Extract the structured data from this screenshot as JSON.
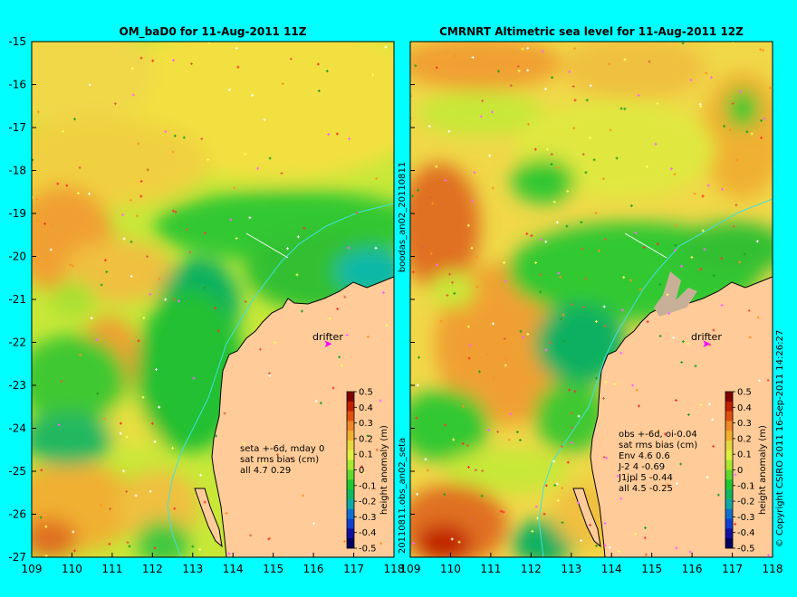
{
  "left_panel": {
    "title": "OM_baD0 for 11-Aug-2011 11Z",
    "stats": [
      "seta +-6d, mday 0",
      "sat rms bias (cm)",
      "all 4.7 0.29"
    ],
    "drifter_label": "drifter",
    "colorbar_label": "height anomaly (m)"
  },
  "right_panel": {
    "title": "CMRNRT Altimetric sea level  for 11-Aug-2011 12Z",
    "stats": [
      "obs +-6d, oi-0.04",
      "sat rms bias (cm)",
      "Env   4.6 0.6",
      "J-2    4 -0.69",
      "J1jpl 5 -0.44",
      "all 4.5 -0.25"
    ],
    "drifter_label": "drifter",
    "colorbar_label": "height anomaly (m)"
  },
  "axes": {
    "x_ticks": [
      109,
      110,
      111,
      112,
      113,
      114,
      115,
      116,
      117,
      118
    ],
    "y_ticks": [
      -15,
      -16,
      -17,
      -18,
      -19,
      -20,
      -21,
      -22,
      -23,
      -24,
      -25,
      -26,
      -27
    ],
    "x_range": [
      109,
      118
    ],
    "y_range": [
      -27,
      -15
    ]
  },
  "colorbar": {
    "ticks": [
      "0.5",
      "0.4",
      "0.3",
      "0.2",
      "0.1",
      "0",
      "-0.1",
      "-0.2",
      "-0.3",
      "-0.4",
      "-0.5"
    ],
    "range": [
      -0.5,
      0.5
    ],
    "colors": [
      "#800000",
      "#c02000",
      "#e05010",
      "#f08828",
      "#f0b030",
      "#e8d840",
      "#e0f040",
      "#a8e830",
      "#60d830",
      "#20c830",
      "#10b860",
      "#10a8a8",
      "#1070d0",
      "#1040d0",
      "#1010a0",
      "#000060"
    ]
  },
  "vertical_text": {
    "middle_top": "boodas_an02_20110811",
    "middle_bottom": "20110811.obs_an02_seta",
    "right_edge": "© Copyright CSIRO 2011    16-Sep-2011 14:26:27"
  },
  "colors": {
    "background": "#00ffff",
    "land": "#ffcc99",
    "frame": "#000000"
  }
}
